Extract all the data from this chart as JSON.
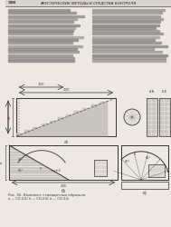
{
  "bg_color": "#ede9e2",
  "text_color": "#444444",
  "line_color": "#333333",
  "page_num": "348",
  "header_title": "АКУСТИЧЕСКИЕ МЕТОДЫ И СРЕДСТВА КОНТРОЛЯ",
  "fig_caption": "Рис. 56. Комплект стандартных образцов",
  "fig_caption2": "а — СО-2-Б; б — СО-2-Б; в — СО-3-Б"
}
